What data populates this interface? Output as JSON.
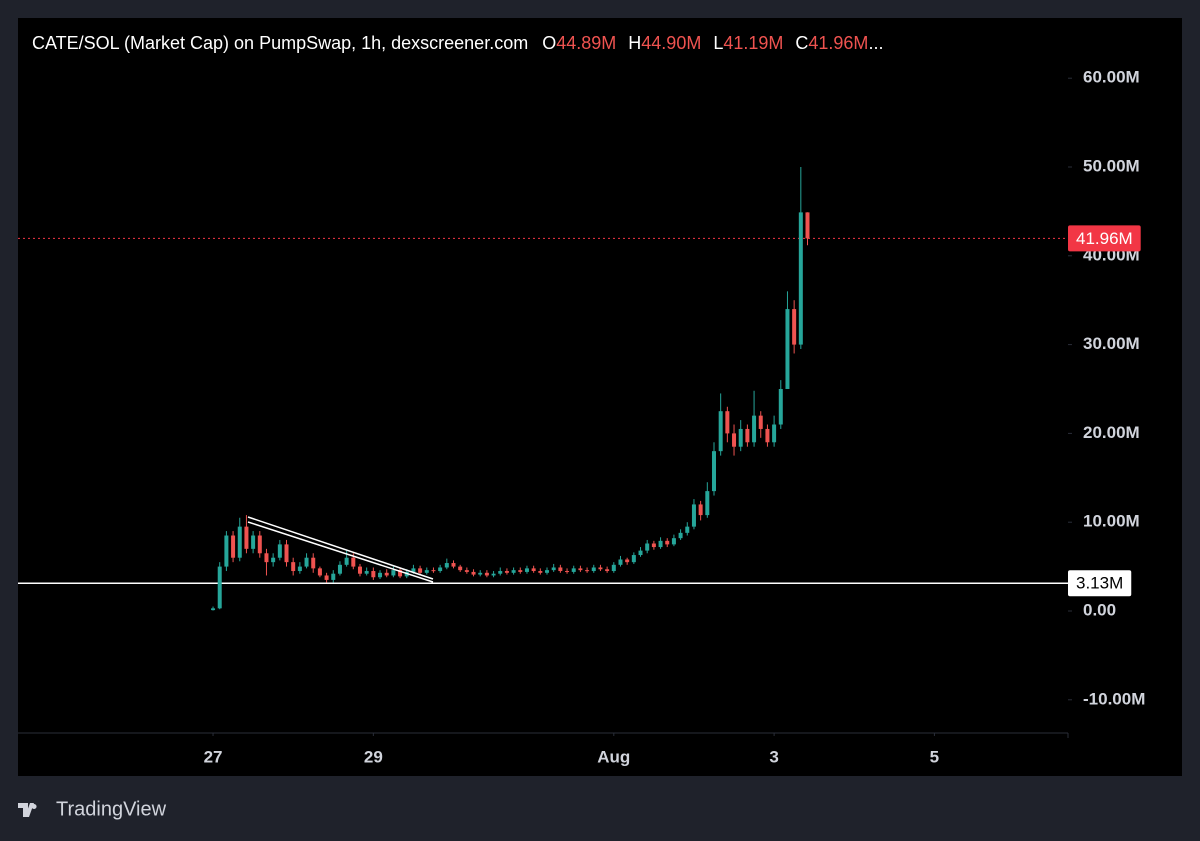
{
  "chart_data": {
    "type": "candlestick",
    "title": "CATE/SOL (Market Cap) on PumpSwap, 1h, dexscreener.com",
    "ohlc_legend": [
      {
        "key": "O",
        "value": "44.89M"
      },
      {
        "key": "H",
        "value": "44.90M"
      },
      {
        "key": "L",
        "value": "41.19M"
      },
      {
        "key": "C",
        "value": "41.96M"
      }
    ],
    "legend_more": "...",
    "x": [
      0,
      2,
      4,
      6,
      8,
      10,
      12,
      14,
      16,
      18,
      20,
      22,
      24,
      26,
      28,
      30,
      32,
      34,
      36,
      38,
      40,
      42,
      44,
      46,
      48,
      50,
      52,
      54,
      56,
      58,
      60,
      62,
      64,
      66,
      68,
      70,
      72,
      74,
      76,
      78,
      80,
      82,
      84,
      86,
      88,
      90,
      92,
      94,
      96,
      98,
      100,
      102,
      104,
      106,
      108,
      110,
      112,
      114,
      116,
      118,
      120,
      122,
      124,
      126,
      128,
      130,
      132,
      134,
      136,
      138,
      140,
      142,
      144,
      146,
      148,
      150,
      152,
      154,
      156,
      158,
      160,
      162,
      164,
      166,
      168,
      170,
      172,
      174,
      176,
      178
    ],
    "open": [
      0.1,
      0.3,
      5.0,
      8.5,
      6.0,
      9.5,
      7.0,
      8.5,
      6.5,
      5.5,
      6.0,
      7.5,
      5.5,
      4.5,
      5.0,
      6.0,
      4.8,
      4.0,
      3.5,
      4.2,
      5.2,
      6.0,
      5.0,
      4.2,
      4.5,
      3.8,
      4.3,
      4.0,
      4.6,
      3.9,
      4.4,
      4.8,
      4.3,
      4.6,
      4.5,
      4.9,
      5.4,
      5.0,
      4.6,
      4.4,
      4.1,
      4.3,
      4.0,
      4.2,
      4.5,
      4.3,
      4.6,
      4.4,
      4.8,
      4.5,
      4.3,
      4.6,
      4.9,
      4.5,
      4.4,
      4.8,
      4.6,
      4.5,
      4.9,
      4.7,
      4.5,
      5.2,
      5.8,
      5.5,
      6.3,
      6.8,
      7.6,
      7.2,
      7.9,
      7.5,
      8.2,
      8.8,
      9.5,
      12.0,
      10.8,
      13.5,
      18.0,
      22.5,
      20.0,
      18.5,
      20.5,
      19.0,
      22.0,
      20.5,
      19.0,
      21.0,
      25.0,
      34.0,
      30.0,
      44.89
    ],
    "high": [
      0.5,
      5.5,
      9.0,
      9.0,
      10.5,
      10.8,
      9.0,
      9.0,
      7.0,
      6.5,
      8.0,
      8.0,
      6.0,
      5.5,
      6.5,
      6.5,
      5.0,
      4.3,
      4.6,
      5.6,
      6.8,
      6.5,
      5.3,
      4.9,
      4.9,
      4.6,
      4.7,
      5.0,
      4.9,
      4.7,
      5.2,
      5.1,
      4.9,
      4.9,
      5.2,
      5.9,
      5.7,
      5.2,
      4.9,
      4.7,
      4.6,
      4.6,
      4.5,
      4.9,
      4.8,
      4.9,
      4.9,
      5.1,
      5.1,
      4.8,
      4.9,
      5.3,
      5.2,
      4.8,
      5.1,
      5.1,
      4.9,
      5.2,
      5.2,
      5.0,
      5.5,
      6.2,
      6.0,
      6.6,
      7.2,
      8.0,
      7.9,
      8.3,
      8.2,
      8.6,
      9.2,
      10.0,
      12.6,
      12.4,
      14.5,
      19.0,
      24.5,
      23.0,
      21.0,
      21.5,
      21.0,
      24.8,
      22.5,
      21.0,
      22.0,
      26.0,
      36.0,
      35.0,
      50.0,
      44.9
    ],
    "low": [
      0.05,
      0.2,
      4.5,
      5.5,
      5.6,
      6.5,
      6.5,
      6.0,
      4.0,
      5.0,
      5.7,
      5.0,
      4.0,
      4.2,
      4.8,
      4.3,
      3.8,
      3.2,
      3.2,
      4.0,
      5.0,
      4.7,
      3.9,
      4.0,
      3.5,
      3.6,
      3.8,
      3.8,
      3.7,
      3.7,
      4.2,
      4.0,
      4.1,
      4.3,
      4.3,
      4.7,
      4.8,
      4.4,
      4.2,
      3.9,
      3.9,
      3.8,
      3.8,
      4.0,
      4.1,
      4.1,
      4.2,
      4.2,
      4.3,
      4.1,
      4.1,
      4.4,
      4.3,
      4.2,
      4.2,
      4.4,
      4.3,
      4.3,
      4.5,
      4.3,
      4.3,
      5.0,
      5.2,
      5.3,
      6.1,
      6.5,
      6.9,
      7.0,
      7.2,
      7.3,
      8.0,
      8.5,
      9.2,
      10.2,
      10.5,
      13.0,
      17.5,
      19.0,
      17.5,
      18.0,
      18.5,
      18.5,
      19.5,
      18.5,
      18.5,
      20.5,
      25.0,
      29.0,
      29.5,
      41.19
    ],
    "close": [
      0.3,
      5.0,
      8.5,
      6.0,
      9.5,
      7.0,
      8.5,
      6.5,
      5.5,
      6.0,
      7.5,
      5.5,
      4.5,
      5.0,
      6.0,
      4.8,
      4.0,
      3.5,
      4.2,
      5.2,
      6.0,
      5.0,
      4.2,
      4.5,
      3.8,
      4.3,
      4.0,
      4.6,
      3.9,
      4.4,
      4.8,
      4.3,
      4.6,
      4.5,
      4.9,
      5.4,
      5.0,
      4.6,
      4.4,
      4.1,
      4.3,
      4.0,
      4.2,
      4.5,
      4.3,
      4.6,
      4.4,
      4.8,
      4.5,
      4.3,
      4.6,
      4.9,
      4.5,
      4.4,
      4.8,
      4.6,
      4.5,
      4.9,
      4.7,
      4.5,
      5.2,
      5.8,
      5.5,
      6.3,
      6.8,
      7.6,
      7.2,
      7.9,
      7.5,
      8.2,
      8.8,
      9.5,
      12.0,
      10.8,
      13.5,
      18.0,
      22.5,
      20.0,
      18.5,
      20.5,
      19.0,
      22.0,
      20.5,
      19.0,
      21.0,
      25.0,
      34.0,
      30.0,
      44.89,
      41.96
    ],
    "up_color": "#26a69a",
    "down_color": "#ef5350",
    "xlim": [
      -58.4,
      256
    ],
    "xticks": [
      {
        "value": 0,
        "label": "27"
      },
      {
        "value": 48,
        "label": "29"
      },
      {
        "value": 120,
        "label": "Aug"
      },
      {
        "value": 168,
        "label": "3"
      },
      {
        "value": 216,
        "label": "5"
      }
    ],
    "ylim": [
      -13.74,
      66.78
    ],
    "yticks": [
      {
        "value": -10,
        "label": "-10.00M"
      },
      {
        "value": 0,
        "label": "0.00"
      },
      {
        "value": 10,
        "label": "10.00M"
      },
      {
        "value": 20,
        "label": "20.00M"
      },
      {
        "value": 30,
        "label": "30.00M"
      },
      {
        "value": 40,
        "label": "40.00M"
      },
      {
        "value": 50,
        "label": "50.00M"
      },
      {
        "value": 60,
        "label": "60.00M"
      }
    ],
    "grid": false,
    "price_lines": [
      {
        "value": 41.96,
        "label": "41.96M",
        "color": "#f23645",
        "style": "dotted"
      },
      {
        "value": 3.13,
        "label": "3.13M",
        "color": "#ffffff",
        "style": "solid"
      }
    ]
  },
  "brand": "TradingView"
}
